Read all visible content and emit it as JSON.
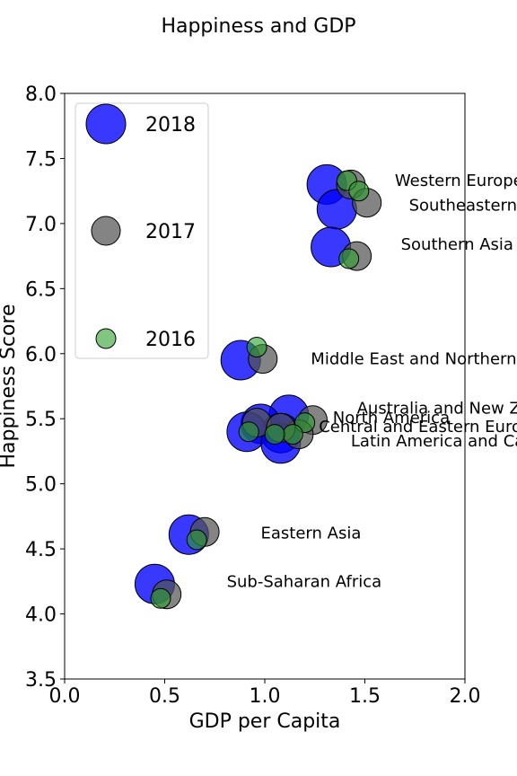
{
  "chart_data": {
    "type": "scatter",
    "title": "Happiness and GDP",
    "xlabel": "GDP per Capita",
    "ylabel": "Happiness Score",
    "xlim": [
      0.0,
      2.0
    ],
    "ylim": [
      3.5,
      8.0
    ],
    "xticks": [
      "0.0",
      "0.5",
      "1.0",
      "1.5",
      "2.0"
    ],
    "yticks": [
      "3.5",
      "4.0",
      "4.5",
      "5.0",
      "5.5",
      "6.0",
      "6.5",
      "7.0",
      "7.5",
      "8.0"
    ],
    "grid": false,
    "legend_position": "top-left",
    "series": [
      {
        "name": "2018",
        "color": "#0000ff",
        "points": [
          {
            "x": 1.31,
            "y": 7.3
          },
          {
            "x": 1.36,
            "y": 7.11
          },
          {
            "x": 1.33,
            "y": 6.82
          },
          {
            "x": 0.88,
            "y": 5.95
          },
          {
            "x": 1.12,
            "y": 5.53
          },
          {
            "x": 0.98,
            "y": 5.46
          },
          {
            "x": 1.08,
            "y": 5.39
          },
          {
            "x": 0.91,
            "y": 5.4
          },
          {
            "x": 1.08,
            "y": 5.31
          },
          {
            "x": 0.62,
            "y": 4.61
          },
          {
            "x": 0.45,
            "y": 4.23
          }
        ]
      },
      {
        "name": "2017",
        "color": "#555555",
        "points": [
          {
            "x": 1.43,
            "y": 7.3
          },
          {
            "x": 1.51,
            "y": 7.16
          },
          {
            "x": 1.46,
            "y": 6.75
          },
          {
            "x": 0.99,
            "y": 5.96
          },
          {
            "x": 1.24,
            "y": 5.49
          },
          {
            "x": 0.96,
            "y": 5.47
          },
          {
            "x": 1.17,
            "y": 5.38
          },
          {
            "x": 1.08,
            "y": 5.43
          },
          {
            "x": 0.7,
            "y": 4.63
          },
          {
            "x": 0.51,
            "y": 4.15
          }
        ]
      },
      {
        "name": "2016",
        "color": "#2ca02c",
        "points": [
          {
            "x": 1.41,
            "y": 7.33
          },
          {
            "x": 1.47,
            "y": 7.25
          },
          {
            "x": 1.42,
            "y": 6.73
          },
          {
            "x": 0.96,
            "y": 6.05
          },
          {
            "x": 1.2,
            "y": 5.47
          },
          {
            "x": 1.14,
            "y": 5.38
          },
          {
            "x": 1.05,
            "y": 5.38
          },
          {
            "x": 0.92,
            "y": 5.4
          },
          {
            "x": 0.66,
            "y": 4.57
          },
          {
            "x": 0.48,
            "y": 4.12
          }
        ]
      }
    ],
    "annotations": [
      {
        "text": "Western Europe",
        "x": 1.65,
        "y": 7.33
      },
      {
        "text": "Southeastern Asia",
        "x": 1.72,
        "y": 7.14
      },
      {
        "text": "Southern Asia",
        "x": 1.68,
        "y": 6.84
      },
      {
        "text": "Middle East and Northern Africa",
        "x": 1.23,
        "y": 5.96
      },
      {
        "text": "Australia and New Zealand",
        "x": 1.46,
        "y": 5.58
      },
      {
        "text": "North America",
        "x": 1.34,
        "y": 5.51
      },
      {
        "text": "Central and Eastern Europe",
        "x": 1.27,
        "y": 5.44
      },
      {
        "text": "Latin America and Caribbean",
        "x": 1.43,
        "y": 5.33
      },
      {
        "text": "Eastern Asia",
        "x": 0.98,
        "y": 4.62
      },
      {
        "text": "Sub-Saharan Africa",
        "x": 0.81,
        "y": 4.25
      }
    ]
  }
}
